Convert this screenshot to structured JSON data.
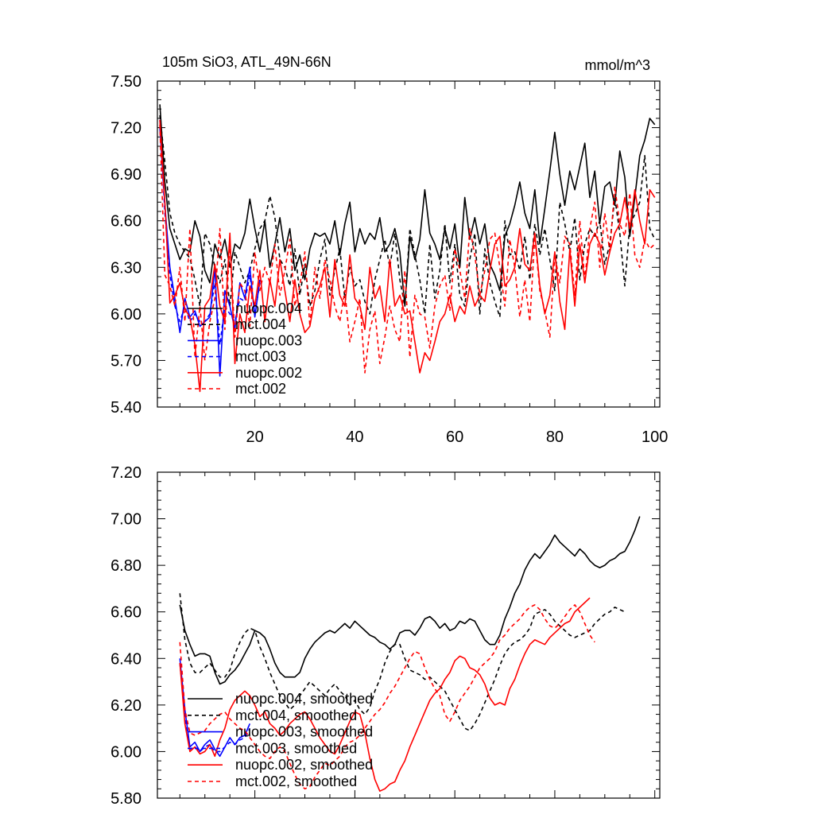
{
  "chart_data": [
    {
      "type": "line",
      "title": "105m SiO3, ATL_49N-66N",
      "units": "mmol/m^3",
      "xlabel": "",
      "ylabel": "",
      "xlim": [
        0.5,
        101
      ],
      "ylim": [
        5.4,
        7.5
      ],
      "x_ticks": [
        20,
        40,
        60,
        80,
        100
      ],
      "y_ticks": [
        5.4,
        5.7,
        6.0,
        6.3,
        6.6,
        6.9,
        7.2,
        7.5
      ],
      "y_tick_labels": [
        "5.40",
        "5.70",
        "6.00",
        "6.30",
        "6.60",
        "6.90",
        "7.20",
        "7.50"
      ],
      "legend_position": "lower-left",
      "series": [
        {
          "name": "nuopc.004",
          "color": "#000000",
          "dash": "solid",
          "x_start": 1,
          "values": [
            7.35,
            6.85,
            6.55,
            6.45,
            6.35,
            6.42,
            6.4,
            6.6,
            6.5,
            6.28,
            6.2,
            6.45,
            6.36,
            6.48,
            6.3,
            6.45,
            6.42,
            6.52,
            6.74,
            6.55,
            6.4,
            6.6,
            6.3,
            6.45,
            6.62,
            6.4,
            6.55,
            6.28,
            6.38,
            6.22,
            6.42,
            6.52,
            6.5,
            6.52,
            6.45,
            6.6,
            6.38,
            6.58,
            6.72,
            6.4,
            6.55,
            6.45,
            6.52,
            6.48,
            6.62,
            6.4,
            6.45,
            6.55,
            6.4,
            6.05,
            6.5,
            6.35,
            6.48,
            6.8,
            6.52,
            6.45,
            6.35,
            6.55,
            6.42,
            6.58,
            6.3,
            6.75,
            6.48,
            6.62,
            6.45,
            6.58,
            6.32,
            6.25,
            6.15,
            6.5,
            6.58,
            6.7,
            6.85,
            6.65,
            6.55,
            6.8,
            6.45,
            6.68,
            6.92,
            7.17,
            6.9,
            6.7,
            6.92,
            6.8,
            6.95,
            7.1,
            6.75,
            6.92,
            6.58,
            6.82,
            6.85,
            6.7,
            7.05,
            6.88,
            6.5,
            6.75,
            7.02,
            7.12,
            7.26,
            7.22
          ]
        },
        {
          "name": "mct.004",
          "color": "#000000",
          "dash": "dash",
          "x_start": 1,
          "values": [
            7.28,
            6.98,
            6.65,
            6.52,
            6.45,
            6.4,
            6.36,
            6.22,
            6.05,
            6.52,
            6.45,
            6.3,
            6.2,
            6.35,
            6.05,
            6.4,
            6.3,
            6.2,
            6.28,
            6.42,
            6.55,
            6.6,
            6.76,
            6.62,
            6.35,
            6.3,
            6.18,
            6.42,
            6.12,
            6.32,
            6.05,
            6.15,
            6.35,
            6.48,
            6.12,
            6.28,
            6.42,
            6.1,
            6.3,
            6.18,
            6.22,
            6.08,
            6.0,
            6.22,
            6.35,
            6.48,
            6.3,
            6.52,
            6.22,
            6.05,
            6.55,
            6.38,
            6.22,
            6.0,
            6.45,
            6.1,
            6.28,
            6.58,
            6.2,
            6.45,
            6.12,
            6.05,
            6.35,
            6.52,
            6.0,
            6.42,
            6.2,
            6.08,
            5.98,
            6.6,
            6.38,
            6.4,
            6.28,
            6.5,
            6.22,
            6.58,
            6.38,
            6.55,
            6.35,
            6.15,
            6.72,
            6.58,
            6.4,
            6.62,
            6.22,
            6.45,
            6.55,
            6.5,
            6.6,
            6.32,
            6.45,
            6.75,
            6.52,
            6.18,
            6.58,
            6.64,
            6.72,
            7.02,
            6.55,
            6.48
          ]
        },
        {
          "name": "nuopc.003",
          "color": "#0000ff",
          "dash": "solid",
          "x_start": 1,
          "values": [
            7.2,
            6.7,
            6.3,
            6.1,
            5.88,
            6.1,
            5.98,
            6.02,
            5.92,
            5.95,
            5.98,
            6.3,
            5.6,
            6.15,
            6.05,
            5.9,
            6.2,
            6.1,
            6.3,
            5.98,
            6.22
          ]
        },
        {
          "name": "mct.003",
          "color": "#0000ff",
          "dash": "dash",
          "x_start": 1,
          "values": [
            7.25,
            6.65,
            6.25,
            6.05,
            5.95,
            6.05,
            5.95,
            6.0,
            5.95,
            5.95,
            6.0,
            6.2,
            5.8,
            6.05,
            6.0,
            5.95,
            6.1,
            6.08,
            6.25,
            6.0,
            6.2
          ]
        },
        {
          "name": "nuopc.002",
          "color": "#ff0000",
          "dash": "solid",
          "x_start": 1,
          "values": [
            7.25,
            6.72,
            6.07,
            6.12,
            6.2,
            6.03,
            5.98,
            5.8,
            5.5,
            6.05,
            6.1,
            6.32,
            6.05,
            5.95,
            6.52,
            5.68,
            6.0,
            5.88,
            6.18,
            6.05,
            6.28,
            5.95,
            6.22,
            6.05,
            6.35,
            6.15,
            5.95,
            6.22,
            6.0,
            5.88,
            5.92,
            6.1,
            6.18,
            6.3,
            5.98,
            6.35,
            6.12,
            6.05,
            6.38,
            6.1,
            6.05,
            5.9,
            6.3,
            6.1,
            6.18,
            5.95,
            6.35,
            6.05,
            6.12,
            6.0,
            6.02,
            5.82,
            5.62,
            5.75,
            5.7,
            5.82,
            5.95,
            6.0,
            6.12,
            5.95,
            6.05,
            6.0,
            6.18,
            6.05,
            6.12,
            6.08,
            6.28,
            6.45,
            6.5,
            6.18,
            6.22,
            6.3,
            6.55,
            6.32,
            6.28,
            6.52,
            6.18,
            6.0,
            6.12,
            6.4,
            6.08,
            5.9,
            6.42,
            6.05,
            6.45,
            6.2,
            6.45,
            6.52,
            6.45,
            6.25,
            6.4,
            6.52,
            6.58,
            6.75,
            6.55,
            6.8,
            6.6,
            6.45,
            6.8,
            6.75
          ]
        },
        {
          "name": "mct.002",
          "color": "#ff0000",
          "dash": "dash",
          "x_start": 1,
          "values": [
            7.22,
            6.25,
            6.18,
            6.05,
            6.3,
            5.95,
            6.55,
            5.72,
            6.05,
            5.7,
            5.95,
            6.1,
            6.55,
            5.9,
            6.45,
            5.85,
            6.2,
            6.15,
            5.92,
            6.4,
            6.15,
            6.3,
            6.2,
            6.45,
            6.12,
            6.28,
            6.48,
            6.05,
            6.18,
            6.4,
            5.92,
            6.3,
            6.1,
            6.35,
            6.22,
            6.05,
            5.95,
            6.15,
            5.82,
            5.95,
            6.1,
            5.62,
            5.9,
            6.02,
            5.68,
            5.85,
            6.05,
            5.9,
            5.82,
            6.28,
            5.72,
            6.12,
            6.0,
            5.98,
            5.78,
            6.05,
            6.18,
            6.25,
            6.02,
            6.42,
            6.28,
            6.1,
            6.55,
            6.38,
            6.12,
            6.28,
            6.48,
            6.52,
            6.3,
            6.05,
            6.48,
            6.3,
            5.98,
            6.22,
            5.95,
            6.5,
            6.15,
            6.02,
            5.85,
            6.38,
            6.2,
            6.5,
            6.45,
            6.12,
            6.6,
            6.22,
            6.55,
            6.72,
            6.3,
            6.65,
            6.4,
            6.82,
            6.58,
            6.5,
            6.78,
            6.38,
            6.3,
            6.48,
            6.42,
            6.45
          ]
        }
      ],
      "legend_entries": [
        "nuopc.004",
        "mct.004",
        "nuopc.003",
        "mct.003",
        "nuopc.002",
        "mct.002"
      ]
    },
    {
      "type": "line",
      "title": "",
      "xlabel": "",
      "ylabel": "",
      "xlim": [
        0.5,
        101
      ],
      "ylim": [
        5.8,
        7.2
      ],
      "x_ticks": [
        20,
        40,
        60,
        80,
        100
      ],
      "y_ticks": [
        5.8,
        6.0,
        6.2,
        6.4,
        6.6,
        6.8,
        7.0,
        7.2
      ],
      "y_tick_labels": [
        "5.80",
        "6.00",
        "6.20",
        "6.40",
        "6.60",
        "6.80",
        "7.00",
        "7.20"
      ],
      "legend_position": "lower-left",
      "series": [
        {
          "name": "nuopc.004, smoothed",
          "color": "#000000",
          "dash": "solid",
          "x_start": 5,
          "values": [
            6.63,
            6.52,
            6.46,
            6.41,
            6.42,
            6.42,
            6.41,
            6.34,
            6.29,
            6.3,
            6.33,
            6.35,
            6.38,
            6.42,
            6.46,
            6.52,
            6.51,
            6.49,
            6.44,
            6.38,
            6.34,
            6.32,
            6.32,
            6.32,
            6.34,
            6.4,
            6.44,
            6.47,
            6.49,
            6.51,
            6.52,
            6.51,
            6.53,
            6.55,
            6.53,
            6.56,
            6.54,
            6.52,
            6.5,
            6.49,
            6.47,
            6.46,
            6.44,
            6.46,
            6.51,
            6.52,
            6.52,
            6.5,
            6.53,
            6.57,
            6.58,
            6.56,
            6.53,
            6.55,
            6.52,
            6.53,
            6.56,
            6.55,
            6.57,
            6.56,
            6.52,
            6.48,
            6.46,
            6.46,
            6.5,
            6.57,
            6.62,
            6.68,
            6.72,
            6.78,
            6.82,
            6.85,
            6.83,
            6.86,
            6.89,
            6.93,
            6.9,
            6.88,
            6.86,
            6.84,
            6.87,
            6.85,
            6.82,
            6.8,
            6.79,
            6.8,
            6.82,
            6.83,
            6.85,
            6.86,
            6.9,
            6.95,
            7.01
          ]
        },
        {
          "name": "mct.004, smoothed",
          "color": "#000000",
          "dash": "dash",
          "x_start": 5,
          "values": [
            6.68,
            6.48,
            6.38,
            6.34,
            6.34,
            6.36,
            6.38,
            6.35,
            6.32,
            6.32,
            6.35,
            6.42,
            6.47,
            6.51,
            6.53,
            6.52,
            6.45,
            6.4,
            6.34,
            6.29,
            6.24,
            6.21,
            6.18,
            6.2,
            6.24,
            6.27,
            6.3,
            6.28,
            6.26,
            6.24,
            6.27,
            6.29,
            6.26,
            6.24,
            6.2,
            6.22,
            6.18,
            6.16,
            6.19,
            6.26,
            6.31,
            6.38,
            6.43,
            6.46,
            6.46,
            6.4,
            6.35,
            6.34,
            6.33,
            6.31,
            6.32,
            6.3,
            6.28,
            6.26,
            6.22,
            6.18,
            6.14,
            6.1,
            6.09,
            6.12,
            6.16,
            6.21,
            6.26,
            6.31,
            6.37,
            6.42,
            6.45,
            6.47,
            6.48,
            6.5,
            6.53,
            6.59,
            6.6,
            6.61,
            6.59,
            6.56,
            6.54,
            6.52,
            6.5,
            6.49,
            6.5,
            6.51,
            6.52,
            6.55,
            6.57,
            6.59,
            6.6,
            6.62,
            6.61,
            6.6
          ]
        },
        {
          "name": "nuopc.003, smoothed",
          "color": "#0000ff",
          "dash": "solid",
          "x_start": 5,
          "values": [
            6.4,
            6.18,
            6.02,
            6.04,
            6.0,
            6.03,
            6.05,
            6.01,
            5.98,
            6.02,
            6.06,
            6.03,
            6.06,
            6.07,
            6.12
          ]
        },
        {
          "name": "mct.003, smoothed",
          "color": "#0000ff",
          "dash": "dash",
          "x_start": 5,
          "values": [
            6.38,
            6.15,
            6.01,
            6.02,
            6.0,
            6.02,
            6.03,
            6.0,
            6.0,
            6.02,
            6.04,
            6.03,
            6.05,
            6.06,
            6.1
          ]
        },
        {
          "name": "nuopc.002, smoothed",
          "color": "#ff0000",
          "dash": "solid",
          "x_start": 5,
          "values": [
            6.38,
            6.12,
            6.0,
            6.02,
            5.99,
            6.0,
            6.03,
            5.98,
            6.05,
            6.1,
            6.18,
            6.22,
            6.24,
            6.26,
            6.24,
            6.2,
            6.15,
            6.17,
            6.12,
            6.1,
            6.07,
            6.09,
            6.12,
            6.14,
            6.16,
            6.17,
            6.14,
            6.1,
            6.06,
            6.03,
            6.0,
            5.99,
            6.03,
            6.08,
            6.13,
            6.17,
            6.16,
            6.08,
            5.97,
            5.88,
            5.83,
            5.84,
            5.86,
            5.87,
            5.92,
            5.96,
            6.02,
            6.07,
            6.12,
            6.17,
            6.22,
            6.25,
            6.27,
            6.31,
            6.34,
            6.39,
            6.41,
            6.4,
            6.36,
            6.35,
            6.33,
            6.29,
            6.23,
            6.2,
            6.21,
            6.2,
            6.27,
            6.31,
            6.37,
            6.42,
            6.46,
            6.48,
            6.47,
            6.46,
            6.49,
            6.51,
            6.53,
            6.55,
            6.56,
            6.6,
            6.62,
            6.64,
            6.66
          ]
        },
        {
          "name": "mct.002, smoothed",
          "color": "#ff0000",
          "dash": "dash",
          "x_start": 5,
          "values": [
            6.47,
            6.18,
            6.08,
            6.07,
            6.08,
            6.09,
            6.12,
            6.14,
            6.16,
            6.17,
            6.14,
            6.12,
            6.1,
            6.09,
            6.06,
            6.03,
            6.0,
            5.98,
            5.97,
            6.0,
            6.02,
            6.0,
            5.95,
            5.9,
            5.86,
            5.84,
            5.85,
            5.89,
            5.92,
            5.95,
            5.94,
            5.96,
            5.98,
            6.02,
            6.04,
            6.05,
            6.07,
            6.1,
            6.13,
            6.16,
            6.18,
            6.21,
            6.25,
            6.28,
            6.32,
            6.36,
            6.4,
            6.43,
            6.42,
            6.36,
            6.31,
            6.27,
            6.24,
            6.16,
            6.13,
            6.17,
            6.22,
            6.25,
            6.28,
            6.32,
            6.36,
            6.38,
            6.4,
            6.43,
            6.48,
            6.5,
            6.53,
            6.55,
            6.57,
            6.6,
            6.62,
            6.63,
            6.61,
            6.57,
            6.54,
            6.53,
            6.55,
            6.58,
            6.61,
            6.63,
            6.6,
            6.55,
            6.5,
            6.47
          ]
        }
      ],
      "legend_entries": [
        "nuopc.004, smoothed",
        "mct.004, smoothed",
        "nuopc.003, smoothed",
        "mct.003, smoothed",
        "nuopc.002, smoothed",
        "mct.002, smoothed"
      ]
    }
  ]
}
